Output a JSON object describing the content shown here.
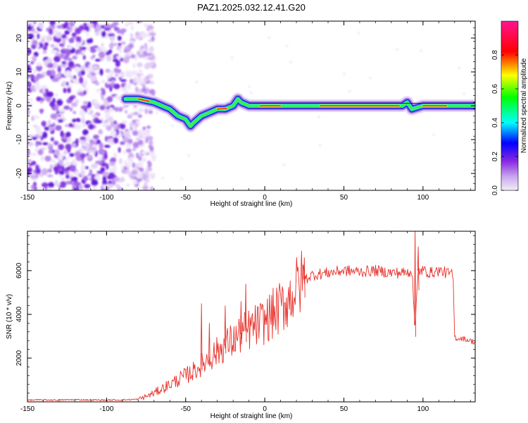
{
  "title": "PAZ1.2025.032.12.41.G20",
  "chart_data": [
    {
      "type": "heatmap",
      "xlabel": "Height of straight line (km)",
      "ylabel": "Frequency (Hz)",
      "xlim": [
        -150,
        133
      ],
      "ylim": [
        -25,
        25
      ],
      "xticks": [
        "-150",
        "-100",
        "-50",
        "0",
        "50",
        "100"
      ],
      "yticks": [
        "-20",
        "-10",
        "0",
        "10",
        "20"
      ],
      "grid": false,
      "ridge_frequency": {
        "x": [
          -88,
          -80,
          -70,
          -60,
          -55,
          -50,
          -47,
          -45,
          -40,
          -35,
          -30,
          -25,
          -20,
          -17,
          -15,
          -10,
          -5,
          0,
          10,
          20,
          30,
          40,
          50,
          60,
          70,
          80,
          87,
          90,
          93,
          100,
          110,
          120,
          133
        ],
        "y": [
          2,
          2,
          1,
          -1,
          -3,
          -4,
          -6,
          -5,
          -3,
          -2,
          -1,
          -1,
          0,
          2,
          1,
          0,
          0,
          0,
          0,
          0,
          0,
          0,
          0,
          0,
          0,
          0,
          0,
          1,
          -1,
          0,
          0,
          0,
          0
        ]
      },
      "colorbar": {
        "label": "Normalized spectral amplitude",
        "ticks": [
          "0.0",
          "0.2",
          "0.4",
          "0.6",
          "0.8"
        ],
        "range": [
          0,
          1
        ],
        "colors": [
          "#f2eef8",
          "#8a2be2",
          "#0000ff",
          "#00ffff",
          "#00ff00",
          "#ffff00",
          "#ff0000",
          "#ff1493"
        ]
      }
    },
    {
      "type": "line",
      "xlabel": "Height of straight line (km)",
      "ylabel": "SNR (10 * v/v)",
      "xlim": [
        -150,
        133
      ],
      "ylim": [
        0,
        7800
      ],
      "xticks": [
        "-150",
        "-100",
        "-50",
        "0",
        "50",
        "100"
      ],
      "yticks": [
        "2000",
        "4000",
        "6000"
      ],
      "grid": false,
      "series": [
        {
          "color": "#e8312b",
          "x": [
            -150,
            -140,
            -130,
            -120,
            -110,
            -100,
            -90,
            -80,
            -75,
            -70,
            -65,
            -60,
            -55,
            -50,
            -45,
            -40,
            -35,
            -30,
            -25,
            -20,
            -15,
            -10,
            -5,
            0,
            5,
            10,
            15,
            20,
            25,
            30,
            40,
            50,
            60,
            70,
            80,
            90,
            93,
            95,
            97,
            100,
            105,
            110,
            115,
            119,
            120,
            121,
            125,
            130,
            133
          ],
          "y": [
            80,
            90,
            85,
            100,
            90,
            80,
            90,
            120,
            250,
            400,
            600,
            800,
            1000,
            1200,
            1400,
            1700,
            2000,
            2300,
            2600,
            2800,
            3100,
            3300,
            3500,
            3700,
            4000,
            4300,
            4700,
            5200,
            5600,
            5800,
            5900,
            6000,
            5950,
            6000,
            5900,
            5900,
            6000,
            3500,
            6000,
            6000,
            5900,
            6000,
            5900,
            5800,
            3000,
            2900,
            2900,
            2800,
            2700
          ]
        }
      ],
      "annotations": [
        {
          "x": -40,
          "y": 4500
        },
        {
          "x": -35,
          "y": 3600
        },
        {
          "x": -25,
          "y": 4400
        },
        {
          "x": -15,
          "y": 4600
        },
        {
          "x": -12,
          "y": 5400
        },
        {
          "x": 25,
          "y": 6600
        },
        {
          "x": 95,
          "y": 7900
        },
        {
          "x": 97,
          "y": 7100
        }
      ]
    }
  ]
}
